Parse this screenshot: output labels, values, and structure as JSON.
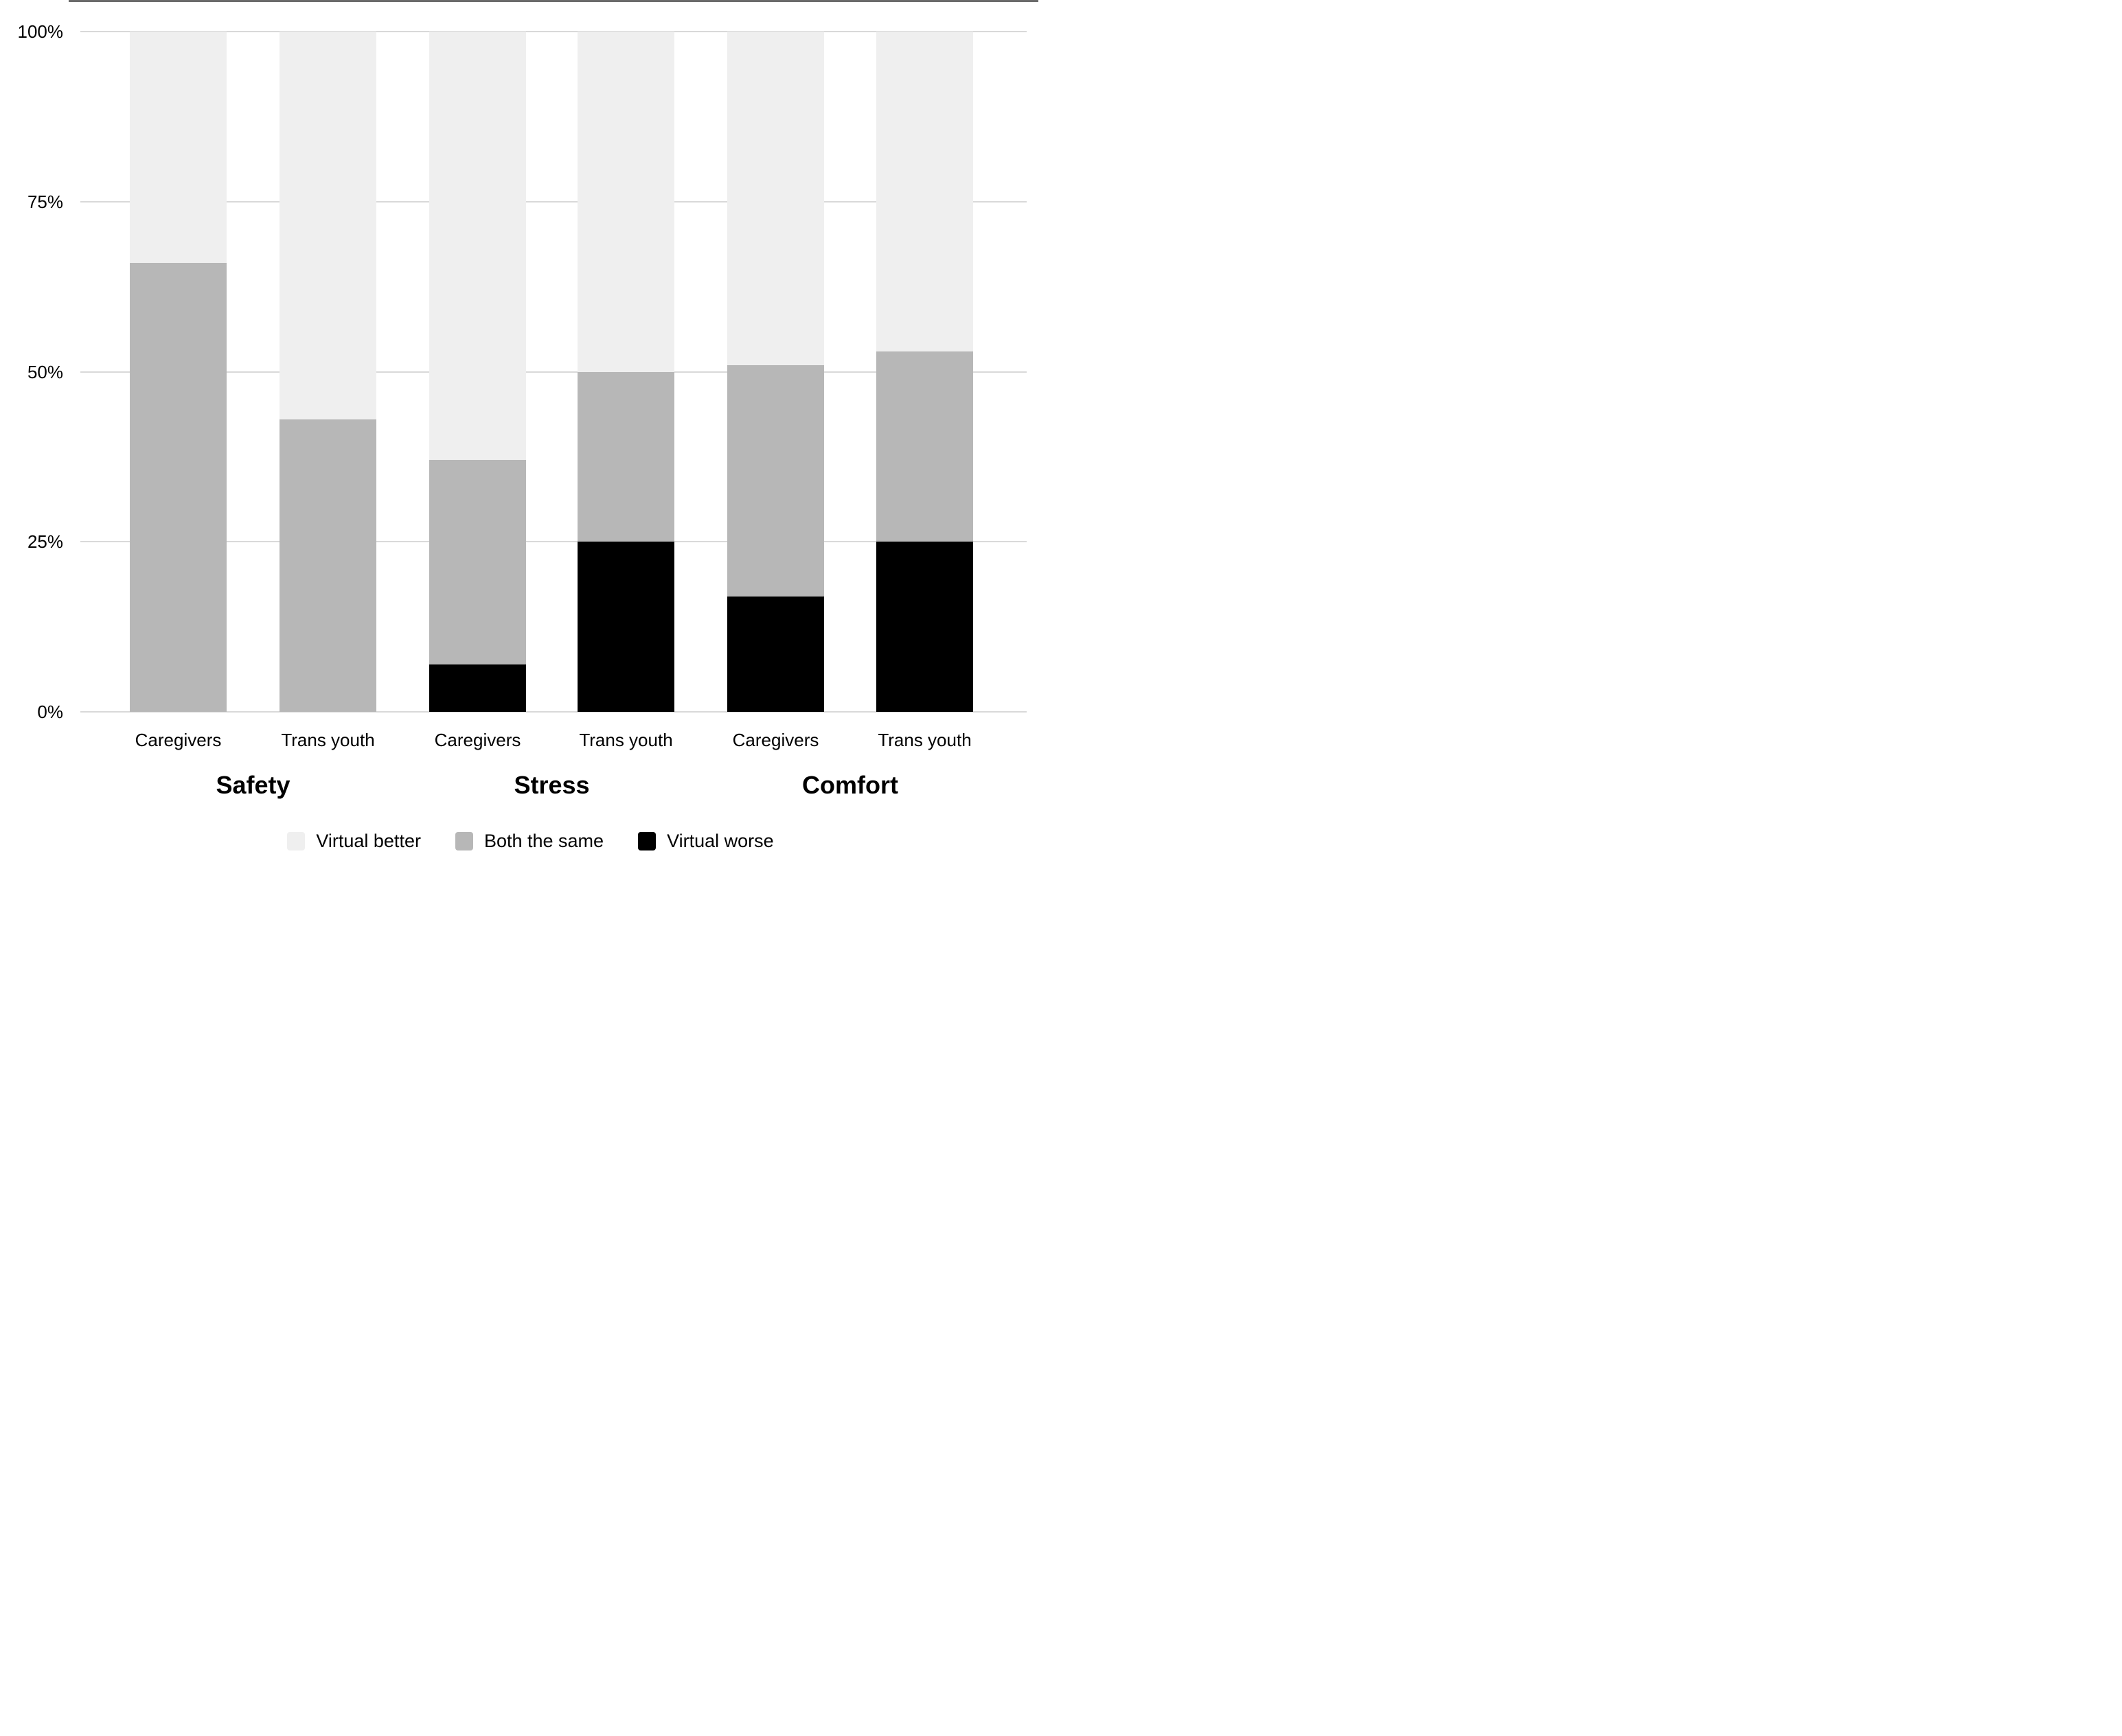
{
  "chart_data": {
    "type": "bar",
    "stacked": true,
    "stacked_unit": "percent",
    "title": "",
    "xlabel": "",
    "ylabel": "",
    "ylim": [
      0,
      100
    ],
    "grid": "horizontal",
    "y_ticks": [
      {
        "value": 0,
        "label": "0%"
      },
      {
        "value": 25,
        "label": "25%"
      },
      {
        "value": 50,
        "label": "50%"
      },
      {
        "value": 75,
        "label": "75%"
      },
      {
        "value": 100,
        "label": "100%"
      }
    ],
    "legend_position": "bottom",
    "legend": [
      {
        "name": "Virtual better",
        "color": "#efefef"
      },
      {
        "name": "Both the same",
        "color": "#b7b7b7"
      },
      {
        "name": "Virtual worse",
        "color": "#000000"
      }
    ],
    "groups": [
      {
        "label": "Safety",
        "bars": [
          {
            "label": "Caregivers",
            "virtual_better": 34,
            "both_the_same": 66,
            "virtual_worse": 0
          },
          {
            "label": "Trans youth",
            "virtual_better": 57,
            "both_the_same": 43,
            "virtual_worse": 0
          }
        ]
      },
      {
        "label": "Stress",
        "bars": [
          {
            "label": "Caregivers",
            "virtual_better": 63,
            "both_the_same": 30,
            "virtual_worse": 7
          },
          {
            "label": "Trans youth",
            "virtual_better": 50,
            "both_the_same": 25,
            "virtual_worse": 25
          }
        ]
      },
      {
        "label": "Comfort",
        "bars": [
          {
            "label": "Caregivers",
            "virtual_better": 49,
            "both_the_same": 34,
            "virtual_worse": 17
          },
          {
            "label": "Trans youth",
            "virtual_better": 47,
            "both_the_same": 28,
            "virtual_worse": 25
          }
        ]
      }
    ]
  },
  "colors": {
    "virtual_better": "#efefef",
    "both_the_same": "#b7b7b7",
    "virtual_worse": "#000000",
    "gridline": "#d9d9d9",
    "axis": "#6b6b6b",
    "text": "#000000",
    "background": "#ffffff"
  },
  "legend": {
    "item_0": "Virtual better",
    "item_1": "Both the same",
    "item_2": "Virtual worse"
  }
}
